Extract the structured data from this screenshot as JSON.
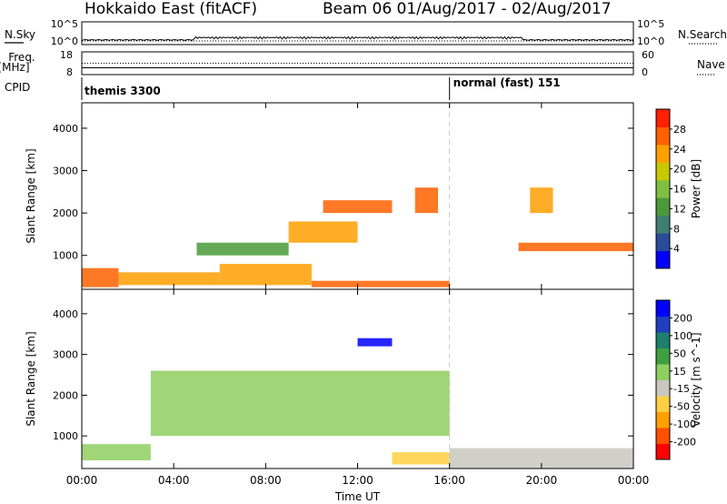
{
  "header": {
    "title": "Hokkaido East (fitACF)",
    "beam_date": "Beam 06 01/Aug/2017 - 02/Aug/2017"
  },
  "strip_labels": {
    "nsky": "N.Sky",
    "nsearch": "N.Search",
    "freq_line1": "Freq.",
    "freq_line2": "[MHz]",
    "nave": "Nave",
    "cpid": "CPID"
  },
  "strip_ticks": {
    "noise_left": [
      "10^5",
      "10^0"
    ],
    "noise_right": [
      "10^5",
      "10^0"
    ],
    "freq_left": [
      "18",
      "8"
    ],
    "nave_right": [
      "60",
      "0"
    ]
  },
  "cpid_labels": [
    "themis 3300",
    "normal (fast) 151"
  ],
  "colors": {
    "power": [
      "#0000ff",
      "#2a4a9a",
      "#3f7f6f",
      "#4a9a3a",
      "#7fbf3f",
      "#c8c800",
      "#ff9f00",
      "#ff6000",
      "#ff2000"
    ],
    "velocity": [
      "#ff0000",
      "#ff4f00",
      "#ff9f00",
      "#ffcf40",
      "#c8c8c0",
      "#8fcf5f",
      "#3f9f3f",
      "#1f7f6f",
      "#1f3fbf",
      "#0000ff"
    ]
  },
  "chart_data": [
    {
      "type": "heatmap",
      "panel": "power",
      "xlabel": "",
      "ylabel": "Slant Range [km]",
      "yticks": [
        "1000",
        "2000",
        "3000",
        "4000"
      ],
      "ylim": [
        200,
        4600
      ],
      "colorbar": {
        "label": "Power [dB]",
        "ticks": [
          "4",
          "8",
          "12",
          "16",
          "20",
          "24",
          "28"
        ],
        "range": [
          0,
          32
        ]
      },
      "regions": [
        {
          "x": [
            0.0,
            1.6
          ],
          "y": [
            250,
            700
          ],
          "value": 28
        },
        {
          "x": [
            1.6,
            6.0
          ],
          "y": [
            300,
            600
          ],
          "value": 22
        },
        {
          "x": [
            6.0,
            10.0
          ],
          "y": [
            300,
            800
          ],
          "value": 24
        },
        {
          "x": [
            10.0,
            16.0
          ],
          "y": [
            250,
            400
          ],
          "value": 28
        },
        {
          "x": [
            5.0,
            9.0
          ],
          "y": [
            1000,
            1300
          ],
          "value": 14
        },
        {
          "x": [
            9.0,
            12.0
          ],
          "y": [
            1300,
            1800
          ],
          "value": 22
        },
        {
          "x": [
            10.5,
            13.5
          ],
          "y": [
            2000,
            2300
          ],
          "value": 27
        },
        {
          "x": [
            14.5,
            15.5
          ],
          "y": [
            2000,
            2600
          ],
          "value": 26
        },
        {
          "x": [
            19.5,
            20.5
          ],
          "y": [
            2000,
            2600
          ],
          "value": 24
        },
        {
          "x": [
            19.0,
            24.0
          ],
          "y": [
            1100,
            1300
          ],
          "value": 25
        }
      ]
    },
    {
      "type": "heatmap",
      "panel": "velocity",
      "xlabel": "Time UT",
      "ylabel": "Slant Range [km]",
      "xticks": [
        "00:00",
        "04:00",
        "08:00",
        "12:00",
        "16:00",
        "20:00",
        "00:00"
      ],
      "xlim": [
        0,
        24
      ],
      "yticks": [
        "1000",
        "2000",
        "3000",
        "4000"
      ],
      "ylim": [
        200,
        4600
      ],
      "colorbar": {
        "label": "Velocity [m s^-1]",
        "ticks": [
          "200",
          "100",
          "50",
          "15",
          "-15",
          "-50",
          "-100",
          "-200"
        ],
        "range": [
          -250,
          250
        ]
      },
      "regions": [
        {
          "x": [
            3.0,
            16.0
          ],
          "y": [
            1000,
            2600
          ],
          "value": 0
        },
        {
          "x": [
            12.0,
            13.5
          ],
          "y": [
            3200,
            3400
          ],
          "value": 220
        },
        {
          "x": [
            13.5,
            16.0
          ],
          "y": [
            300,
            600
          ],
          "value": -60
        },
        {
          "x": [
            16.0,
            24.0
          ],
          "y": [
            200,
            700
          ],
          "value": -50
        },
        {
          "x": [
            0.0,
            3.0
          ],
          "y": [
            400,
            800
          ],
          "value": 20
        }
      ]
    }
  ],
  "time_series": {
    "cpid_change_hour": 16,
    "freq_level": 11,
    "nave_level": 30
  }
}
